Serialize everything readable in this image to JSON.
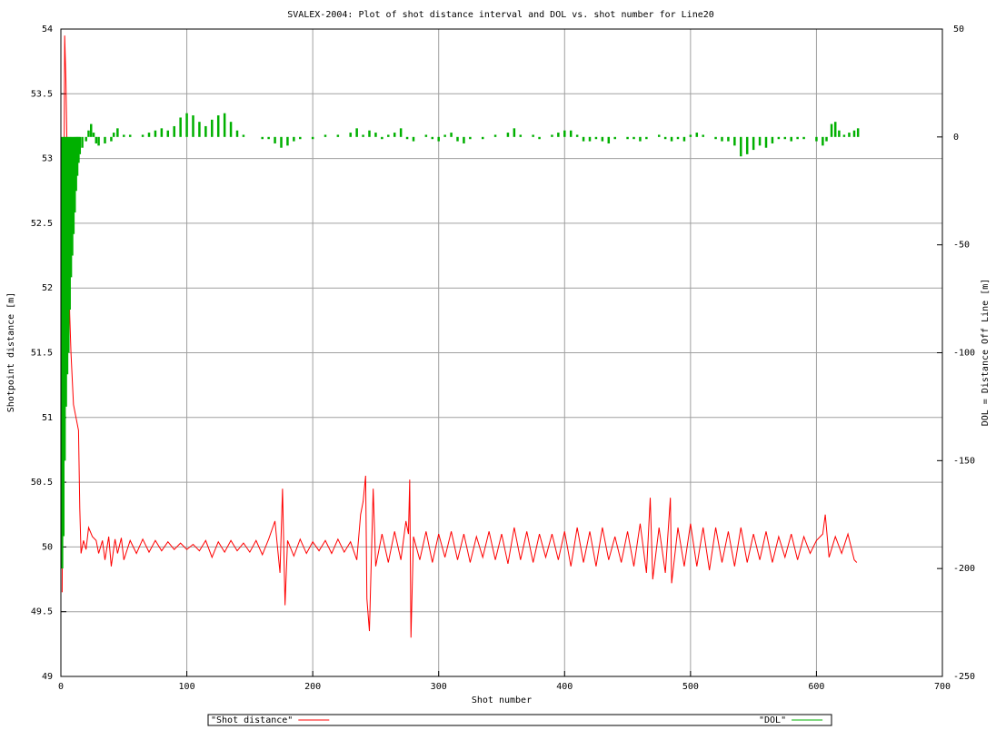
{
  "chart_data": {
    "type": "line",
    "title": "SVALEX-2004: Plot of shot distance interval and DOL vs. shot number for Line20",
    "xlabel": "Shot number",
    "ylabel": "Shotpoint distance [m]",
    "y2label": "DOL = Distance Off Line [m]",
    "xlim": [
      0,
      700
    ],
    "xticks": [
      0,
      100,
      200,
      300,
      400,
      500,
      600,
      700
    ],
    "ylim": [
      49,
      54
    ],
    "yticks": [
      49,
      49.5,
      50,
      50.5,
      51,
      51.5,
      52,
      52.5,
      53,
      53.5,
      54
    ],
    "y2lim": [
      -250,
      50
    ],
    "y2ticks": [
      -250,
      -200,
      -150,
      -100,
      -50,
      0,
      50
    ],
    "grid": true,
    "legend": "bottom",
    "series": [
      {
        "name": "\"Shot distance\"",
        "color": "#ff0000",
        "type": "line",
        "x": [
          1,
          2,
          3,
          4,
          5,
          6,
          7,
          8,
          10,
          12,
          14,
          15,
          16,
          18,
          20,
          22,
          25,
          28,
          30,
          33,
          35,
          38,
          40,
          43,
          45,
          48,
          50,
          55,
          60,
          65,
          70,
          75,
          80,
          85,
          90,
          95,
          100,
          105,
          110,
          115,
          120,
          125,
          130,
          135,
          140,
          145,
          150,
          155,
          160,
          165,
          170,
          174,
          176,
          178,
          180,
          185,
          190,
          195,
          200,
          205,
          210,
          215,
          220,
          225,
          230,
          235,
          238,
          240,
          242,
          243,
          245,
          248,
          250,
          255,
          260,
          265,
          270,
          274,
          276,
          277,
          278,
          280,
          285,
          290,
          295,
          300,
          305,
          310,
          315,
          320,
          325,
          330,
          335,
          340,
          345,
          350,
          355,
          360,
          365,
          370,
          375,
          380,
          385,
          390,
          395,
          400,
          405,
          410,
          415,
          420,
          425,
          430,
          435,
          440,
          445,
          450,
          455,
          460,
          465,
          468,
          470,
          475,
          480,
          484,
          485,
          490,
          495,
          500,
          505,
          510,
          515,
          520,
          525,
          530,
          535,
          540,
          545,
          550,
          555,
          560,
          565,
          570,
          575,
          580,
          585,
          590,
          595,
          600,
          605,
          607,
          610,
          615,
          620,
          625,
          630,
          632
        ],
        "values": [
          49.65,
          51.5,
          53.95,
          53.6,
          53.0,
          52.3,
          51.8,
          51.5,
          51.1,
          51.0,
          50.9,
          50.3,
          49.95,
          50.05,
          49.98,
          50.15,
          50.08,
          50.05,
          49.95,
          50.05,
          49.9,
          50.08,
          49.85,
          50.06,
          49.95,
          50.07,
          49.9,
          50.05,
          49.95,
          50.06,
          49.96,
          50.05,
          49.97,
          50.04,
          49.98,
          50.03,
          49.98,
          50.02,
          49.97,
          50.05,
          49.92,
          50.04,
          49.96,
          50.05,
          49.97,
          50.03,
          49.96,
          50.05,
          49.94,
          50.06,
          50.2,
          49.8,
          50.45,
          49.55,
          50.05,
          49.93,
          50.06,
          49.95,
          50.04,
          49.97,
          50.05,
          49.95,
          50.06,
          49.96,
          50.04,
          49.9,
          50.25,
          50.35,
          50.55,
          49.6,
          49.35,
          50.45,
          49.85,
          50.1,
          49.88,
          50.12,
          49.9,
          50.2,
          50.1,
          50.52,
          49.3,
          50.08,
          49.9,
          50.12,
          49.88,
          50.1,
          49.92,
          50.12,
          49.9,
          50.1,
          49.88,
          50.08,
          49.92,
          50.12,
          49.9,
          50.1,
          49.87,
          50.15,
          49.9,
          50.12,
          49.88,
          50.1,
          49.92,
          50.1,
          49.9,
          50.12,
          49.85,
          50.15,
          49.88,
          50.12,
          49.85,
          50.15,
          49.9,
          50.08,
          49.88,
          50.12,
          49.85,
          50.18,
          49.8,
          50.38,
          49.75,
          50.15,
          49.8,
          50.38,
          49.72,
          50.15,
          49.85,
          50.18,
          49.85,
          50.15,
          49.82,
          50.15,
          49.88,
          50.12,
          49.85,
          50.15,
          49.88,
          50.1,
          49.9,
          50.12,
          49.88,
          50.08,
          49.92,
          50.1,
          49.9,
          50.08,
          49.95,
          50.05,
          50.1,
          50.25,
          49.92,
          50.08,
          49.95,
          50.1,
          49.9,
          49.88
        ]
      },
      {
        "name": "\"DOL\"",
        "color": "#00b000",
        "type": "impulse",
        "axis": "y2",
        "x": [
          1,
          2,
          3,
          4,
          5,
          6,
          7,
          8,
          9,
          10,
          11,
          12,
          13,
          14,
          15,
          17,
          20,
          22,
          24,
          26,
          28,
          30,
          35,
          40,
          42,
          45,
          50,
          55,
          60,
          65,
          70,
          75,
          80,
          85,
          90,
          95,
          100,
          105,
          110,
          115,
          120,
          125,
          130,
          135,
          140,
          145,
          150,
          155,
          160,
          165,
          170,
          175,
          180,
          185,
          190,
          195,
          200,
          205,
          210,
          215,
          220,
          225,
          230,
          235,
          240,
          245,
          250,
          255,
          260,
          265,
          270,
          275,
          280,
          285,
          290,
          295,
          300,
          305,
          310,
          315,
          320,
          325,
          330,
          335,
          340,
          345,
          350,
          355,
          360,
          365,
          370,
          375,
          380,
          385,
          390,
          395,
          400,
          405,
          410,
          415,
          420,
          425,
          430,
          435,
          440,
          445,
          450,
          455,
          460,
          465,
          470,
          475,
          480,
          485,
          490,
          495,
          500,
          505,
          510,
          515,
          520,
          525,
          530,
          535,
          540,
          545,
          550,
          555,
          560,
          565,
          570,
          575,
          580,
          585,
          590,
          595,
          600,
          605,
          608,
          612,
          615,
          618,
          622,
          626,
          630,
          633
        ],
        "values": [
          -200,
          -185,
          -150,
          -125,
          -110,
          -100,
          -80,
          -65,
          -55,
          -45,
          -35,
          -25,
          -18,
          -12,
          -8,
          -5,
          -2,
          3,
          6,
          2,
          -3,
          -4,
          -3,
          -2,
          2,
          4,
          1,
          1,
          0,
          1,
          2,
          3,
          4,
          3,
          5,
          9,
          11,
          10,
          7,
          5,
          8,
          10,
          11,
          7,
          3,
          1,
          0,
          0,
          -1,
          -1,
          -3,
          -5,
          -4,
          -2,
          -1,
          0,
          -1,
          0,
          1,
          0,
          1,
          0,
          2,
          4,
          1,
          3,
          2,
          -1,
          1,
          2,
          4,
          -1,
          -2,
          0,
          1,
          -1,
          -2,
          1,
          2,
          -2,
          -3,
          -1,
          0,
          -1,
          0,
          1,
          0,
          2,
          4,
          1,
          0,
          1,
          -1,
          0,
          1,
          2,
          3,
          3,
          1,
          -2,
          -2,
          -1,
          -2,
          -3,
          -1,
          0,
          -1,
          -1,
          -2,
          -1,
          0,
          1,
          -1,
          -2,
          -1,
          -2,
          1,
          2,
          1,
          0,
          -1,
          -2,
          -2,
          -4,
          -9,
          -8,
          -6,
          -4,
          -5,
          -3,
          -1,
          -1,
          -2,
          -1,
          -1,
          0,
          -2,
          -4,
          -2,
          6,
          7,
          3,
          1,
          2,
          3,
          4
        ]
      }
    ]
  }
}
